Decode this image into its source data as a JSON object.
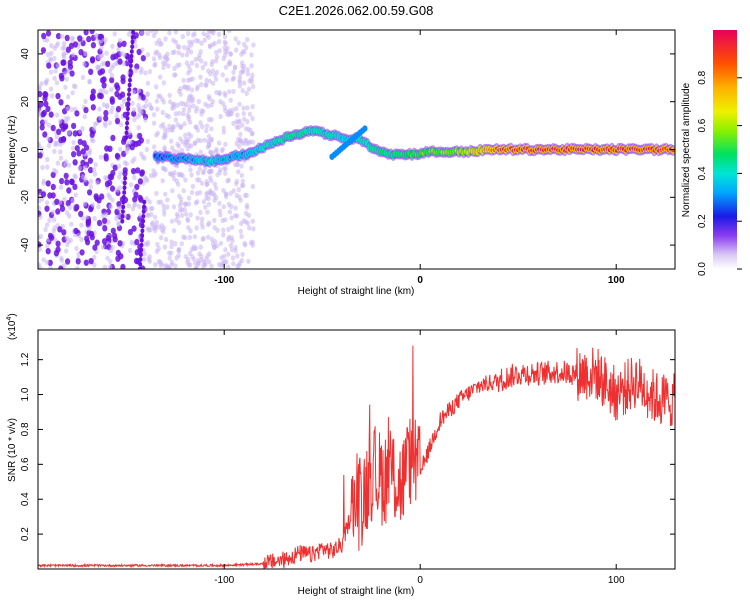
{
  "title": "C2E1.2026.062.00.59.G08",
  "colors": {
    "snr_line": "#ee3030",
    "scatter_purple": "#6a10e0",
    "scatter_light": "#c9b3f2"
  },
  "chart_data": [
    {
      "type": "heatmap",
      "name": "spectrogram",
      "xlabel": "Height of straight line (km)",
      "ylabel": "Frequency (Hz)",
      "xlim": [
        -195,
        130
      ],
      "ylim": [
        -50,
        50
      ],
      "xticks": [
        -100,
        0,
        100
      ],
      "xtick_labels": [
        "-100",
        "0",
        "100"
      ],
      "yticks": [
        -40,
        -20,
        0,
        20,
        40
      ],
      "ytick_labels": [
        "-40",
        "-20",
        "0",
        "20",
        "40"
      ],
      "colorbar": {
        "label": "Normalized spectral amplitude",
        "range": [
          0,
          1
        ],
        "ticks": [
          0.0,
          0.2,
          0.4,
          0.6,
          0.8
        ],
        "tick_labels": [
          "0.0",
          "0.2",
          "0.4",
          "0.6",
          "0.8"
        ]
      },
      "ridge": {
        "x": [
          -135,
          -120,
          -105,
          -95,
          -85,
          -75,
          -65,
          -55,
          -45,
          -38,
          -32,
          -27,
          -22,
          -15,
          -5,
          5,
          20,
          40,
          60,
          80,
          100,
          130
        ],
        "freq": [
          -3,
          -4,
          -5,
          -3,
          -1,
          3,
          6,
          8,
          6,
          4,
          5,
          2,
          0,
          -2,
          -2,
          -1,
          -1,
          0,
          0,
          0,
          0,
          0
        ],
        "amplitude": [
          0.2,
          0.3,
          0.35,
          0.3,
          0.35,
          0.4,
          0.45,
          0.4,
          0.4,
          0.35,
          0.4,
          0.4,
          0.45,
          0.45,
          0.5,
          0.55,
          0.6,
          0.9,
          0.95,
          0.95,
          0.95,
          0.95
        ]
      },
      "scatter_region_x": [
        -195,
        -85
      ]
    },
    {
      "type": "line",
      "name": "snr",
      "xlabel": "Height of straight line (km)",
      "ylabel": "SNR (10 * v/v)",
      "y_scale_label": "(x10",
      "y_scale_exp": "4",
      "xlim": [
        -195,
        130
      ],
      "ylim": [
        0,
        1.37
      ],
      "xticks": [
        -100,
        0,
        100
      ],
      "xtick_labels": [
        "-100",
        "0",
        "100"
      ],
      "yticks": [
        0.2,
        0.4,
        0.6,
        0.8,
        1.0,
        1.2
      ],
      "ytick_labels": [
        "0.2",
        "0.4",
        "0.6",
        "0.8",
        "1.0",
        "1.2"
      ],
      "series": [
        {
          "name": "SNR",
          "x": [
            -195,
            -150,
            -100,
            -80,
            -70,
            -62,
            -55,
            -50,
            -45,
            -40,
            -35,
            -30,
            -25,
            -20,
            -15,
            -10,
            -5,
            0,
            10,
            20,
            30,
            40,
            50,
            60,
            70,
            80,
            90,
            100,
            110,
            120,
            130
          ],
          "y": [
            0.02,
            0.02,
            0.02,
            0.03,
            0.05,
            0.09,
            0.08,
            0.12,
            0.1,
            0.14,
            0.32,
            0.4,
            0.55,
            0.52,
            0.55,
            0.48,
            0.62,
            0.55,
            0.85,
            0.97,
            1.05,
            1.08,
            1.12,
            1.12,
            1.13,
            1.12,
            1.12,
            1.0,
            1.08,
            0.98,
            0.96
          ]
        }
      ]
    }
  ]
}
